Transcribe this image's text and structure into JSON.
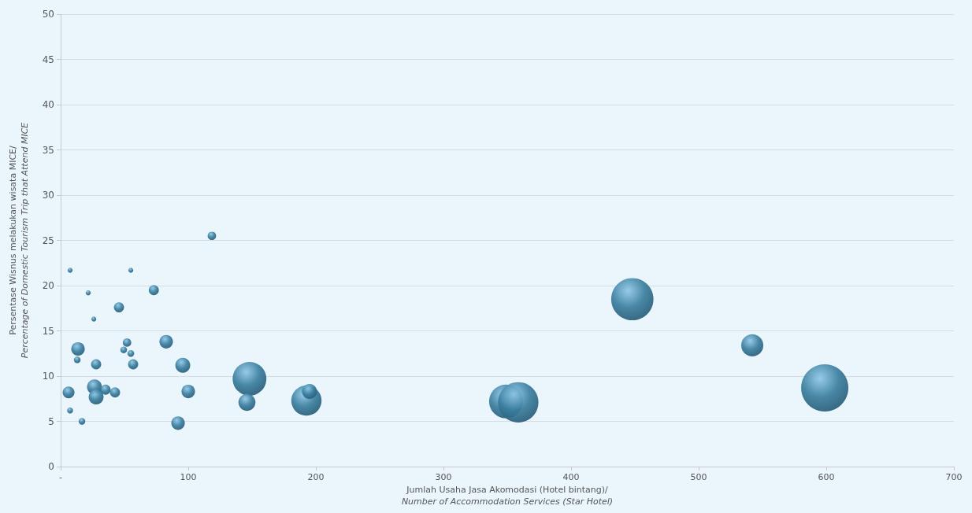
{
  "chart_data": {
    "type": "bubble",
    "xlabel": "Jumlah Usaha Jasa Akomodasi (Hotel bintang)/\nNumber of Accommodation Services (Star Hotel)",
    "ylabel": "Persentase Wisnus melakukan wisata MICE/\nPercentage of Domestic Tourism Trip that Attend MICE",
    "x": [
      7.4,
      55,
      21.6,
      26,
      118.5,
      73,
      45.7,
      82.7,
      13.6,
      13,
      52,
      49.4,
      55,
      56.8,
      27.8,
      95.7,
      6.2,
      26.5,
      27.8,
      35.2,
      42.6,
      100,
      7.4,
      16.7,
      92,
      148,
      146,
      192.6,
      195,
      349,
      358.6,
      448,
      542,
      598.8
    ],
    "values": [
      21.7,
      21.7,
      19.2,
      16.3,
      25.5,
      19.5,
      17.6,
      13.8,
      13.0,
      11.8,
      13.7,
      12.9,
      12.5,
      11.3,
      11.3,
      11.2,
      8.2,
      8.8,
      7.7,
      8.5,
      8.2,
      8.3,
      6.2,
      5.0,
      4.8,
      9.7,
      7.1,
      7.3,
      8.3,
      7.2,
      7.1,
      18.5,
      13.4,
      8.7
    ],
    "sizes": [
      0.011,
      0.011,
      0.011,
      0.011,
      0.032,
      0.046,
      0.046,
      0.082,
      0.082,
      0.02,
      0.032,
      0.02,
      0.02,
      0.046,
      0.046,
      0.1,
      0.063,
      0.1,
      0.1,
      0.046,
      0.046,
      0.082,
      0.016,
      0.02,
      0.082,
      0.51,
      0.13,
      0.41,
      0.1,
      0.51,
      0.73,
      0.8,
      0.22,
      1
    ],
    "color": "#3a7d9e",
    "xlim": [
      0,
      700
    ],
    "xticks": [
      {
        "value": 0,
        "label": "-"
      },
      100,
      200,
      300,
      400,
      500,
      600,
      700
    ],
    "ylim": [
      0,
      50
    ],
    "yticks": [
      0,
      5,
      10,
      15,
      20,
      25,
      30,
      35,
      40,
      45,
      50
    ],
    "grid": "y"
  }
}
